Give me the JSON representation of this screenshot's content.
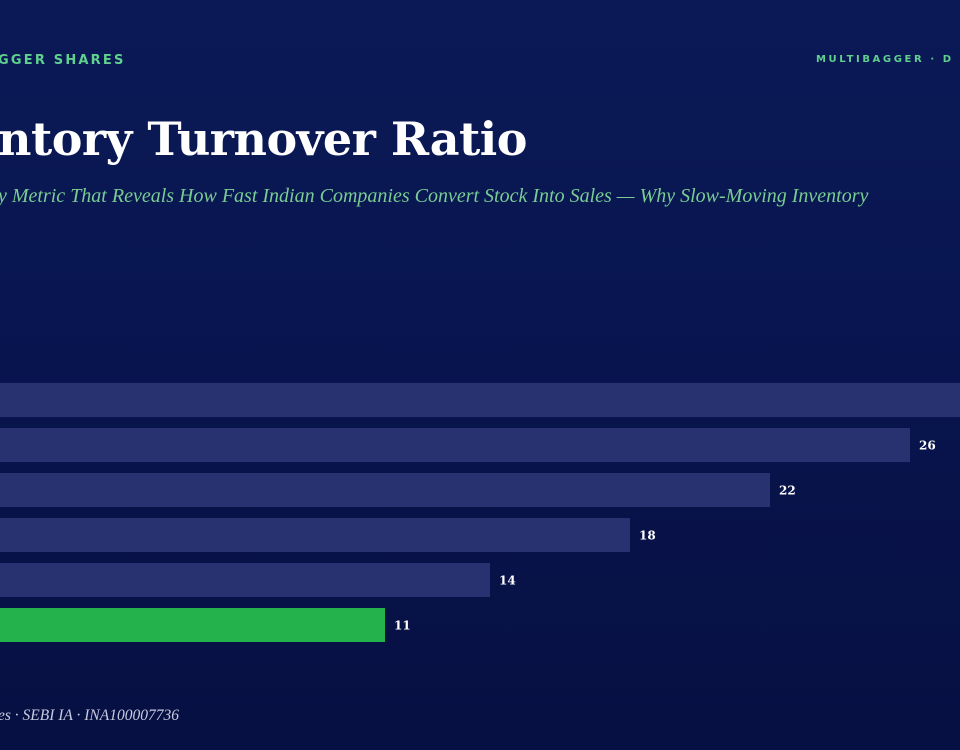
{
  "header": {
    "brand_left": "GGER SHARES",
    "brand_right": "MULTIBAGGER · D"
  },
  "title": "ntory Turnover Ratio",
  "subtitle": "y Metric That Reveals How Fast Indian Companies Convert Stock Into Sales — Why Slow-Moving Inventory",
  "footer": "es · SEBI IA · INA100007736",
  "colors": {
    "bar": "#283270",
    "highlight": "#24b24d",
    "label": "#ffffff"
  },
  "chart_data": {
    "type": "bar",
    "orientation": "horizontal",
    "values": [
      30,
      26,
      22,
      18,
      14,
      11
    ],
    "value_labels": [
      "",
      "26",
      "22",
      "18",
      "14",
      "11"
    ],
    "highlight_index": 5
  }
}
